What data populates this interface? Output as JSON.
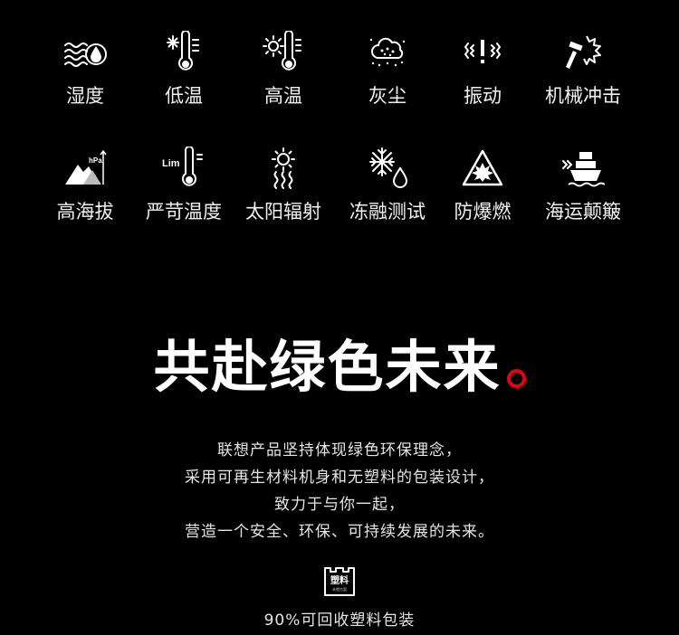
{
  "conditions": [
    {
      "label": "湿度",
      "icon": "humidity-icon"
    },
    {
      "label": "低温",
      "icon": "low-temperature-icon"
    },
    {
      "label": "高温",
      "icon": "high-temperature-icon"
    },
    {
      "label": "灰尘",
      "icon": "dust-icon"
    },
    {
      "label": "振动",
      "icon": "vibration-icon"
    },
    {
      "label": "机械冲击",
      "icon": "mechanical-shock-icon"
    },
    {
      "label": "高海拔",
      "icon": "high-altitude-icon",
      "icon_text": "hPa"
    },
    {
      "label": "严苛温度",
      "icon": "extreme-temperature-icon",
      "icon_text": "Lim"
    },
    {
      "label": "太阳辐射",
      "icon": "solar-radiation-icon"
    },
    {
      "label": "冻融测试",
      "icon": "freeze-thaw-icon"
    },
    {
      "label": "防爆燃",
      "icon": "explosion-proof-icon"
    },
    {
      "label": "海运颠簸",
      "icon": "sea-transport-icon"
    }
  ],
  "headline": "共赴绿色未来",
  "accent_color": "#e60012",
  "description": [
    "联想产品坚持体现绿色环保理念，",
    "采用可再生材料机身和无塑料的包装设计，",
    "致力于与你一起，",
    "营造一个安全、环保、可持续发展的未来。"
  ],
  "packaging": {
    "icon": "plastic-free-packaging-icon",
    "icon_text_main": "塑料",
    "icon_text_sub": "未塑方案",
    "label": "90%可回收塑料包装"
  }
}
